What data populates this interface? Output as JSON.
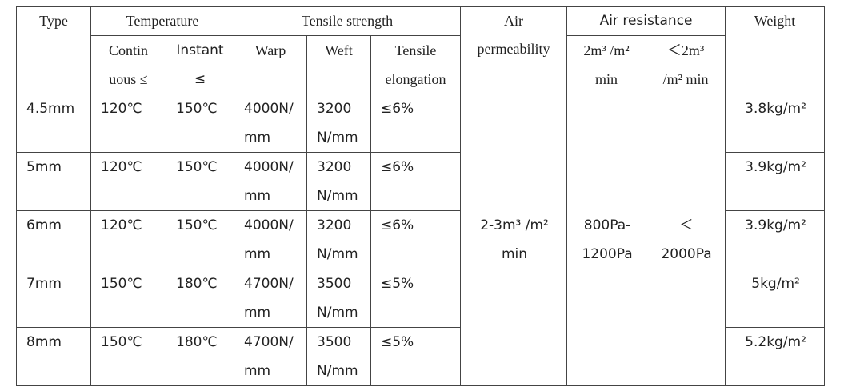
{
  "table": {
    "header": {
      "type": "Type",
      "temperature": "Temperature",
      "tensile_strength": "Tensile strength",
      "air_permeability": "Air\npermeability",
      "air_resistance": "Air resistance",
      "weight": "Weight",
      "continuous": "Contin\nuous ≤",
      "instant": "Instant\n≤",
      "warp": "Warp",
      "weft": "Weft",
      "tensile_elongation": "Tensile\nelongation",
      "resistance_low": "2m³ /m²\nmin",
      "resistance_high": "＜2m³\n/m² min"
    },
    "rows": [
      [
        "4.5mm",
        "120℃",
        "150℃",
        "4000N/\nmm",
        "3200\nN/mm",
        "≤6%",
        "3.8kg/m²"
      ],
      [
        "5mm",
        "120℃",
        "150℃",
        "4000N/\nmm",
        "3200\nN/mm",
        "≤6%",
        "3.9kg/m²"
      ],
      [
        "6mm",
        "120℃",
        "150℃",
        "4000N/\nmm",
        "3200\nN/mm",
        "≤6%",
        "3.9kg/m²"
      ],
      [
        "7mm",
        "150℃",
        "180℃",
        "4700N/\nmm",
        "3500\nN/mm",
        "≤5%",
        "5kg/m²"
      ],
      [
        "8mm",
        "150℃",
        "180℃",
        "4700N/\nmm",
        "3500\nN/mm",
        "≤5%",
        "5.2kg/m²"
      ]
    ],
    "shared": {
      "air_permeability": "2-3m³ /m²\nmin",
      "air_resistance_low": "800Pa-\n1200Pa",
      "air_resistance_high": "＜\n2000Pa"
    }
  }
}
